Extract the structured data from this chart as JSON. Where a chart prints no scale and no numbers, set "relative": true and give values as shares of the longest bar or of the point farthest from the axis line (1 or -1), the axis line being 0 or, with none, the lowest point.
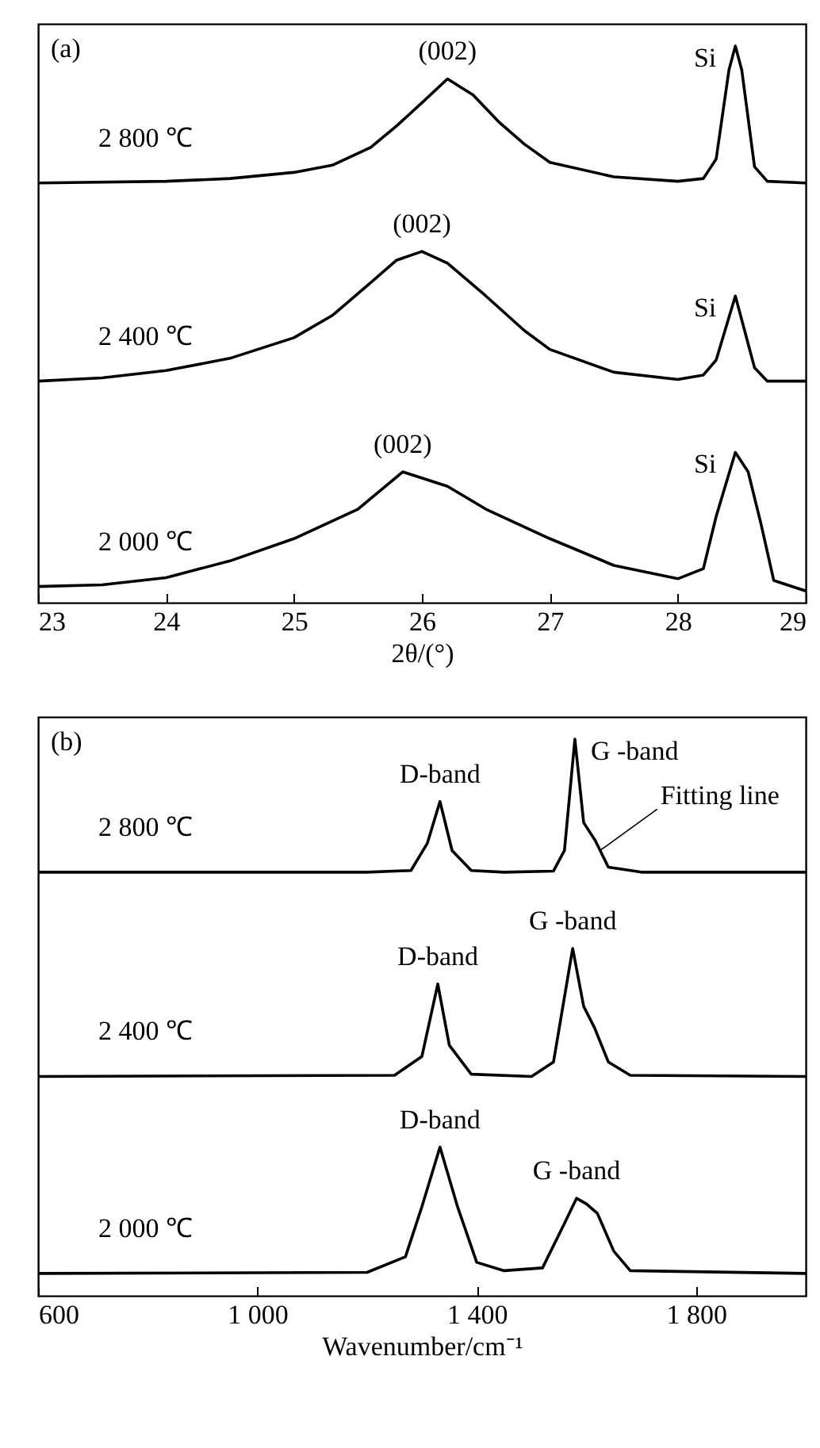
{
  "chart_data": [
    {
      "type": "line",
      "xlabel": "2θ/(°)",
      "xlim": [
        23,
        29
      ],
      "xticks": [
        23,
        24,
        25,
        26,
        27,
        28,
        29
      ],
      "relative": true,
      "series": [
        {
          "name": "2 800 ℃",
          "color": "#000000",
          "x": [
            23,
            24,
            24.5,
            25,
            25.3,
            25.6,
            25.8,
            26.0,
            26.2,
            26.4,
            26.6,
            26.8,
            27,
            27.5,
            28,
            28.2,
            28.3,
            28.4,
            28.45,
            28.5,
            28.6,
            28.7,
            29
          ],
          "values": [
            0.754,
            0.757,
            0.762,
            0.773,
            0.786,
            0.818,
            0.856,
            0.898,
            0.941,
            0.912,
            0.864,
            0.824,
            0.791,
            0.765,
            0.757,
            0.762,
            0.797,
            0.957,
            1,
            0.957,
            0.783,
            0.757,
            0.754
          ]
        },
        {
          "name": "2 400 ℃",
          "color": "#000000",
          "x": [
            23,
            23.5,
            24,
            24.5,
            25,
            25.3,
            25.6,
            25.8,
            26.0,
            26.2,
            26.5,
            26.8,
            27,
            27.5,
            28,
            28.2,
            28.3,
            28.45,
            28.6,
            28.7,
            29
          ],
          "values": [
            0.398,
            0.404,
            0.417,
            0.439,
            0.476,
            0.516,
            0.575,
            0.615,
            0.631,
            0.61,
            0.551,
            0.489,
            0.455,
            0.414,
            0.401,
            0.409,
            0.436,
            0.551,
            0.422,
            0.398,
            0.398
          ]
        },
        {
          "name": "2 000 ℃",
          "color": "#000000",
          "x": [
            23,
            23.5,
            24,
            24.5,
            25,
            25.5,
            25.85,
            26.2,
            26.5,
            27,
            27.5,
            28,
            28.2,
            28.3,
            28.45,
            28.55,
            28.65,
            28.75,
            29
          ],
          "values": [
            0.029,
            0.032,
            0.045,
            0.075,
            0.115,
            0.168,
            0.235,
            0.209,
            0.168,
            0.115,
            0.067,
            0.043,
            0.061,
            0.155,
            0.27,
            0.235,
            0.142,
            0.04,
            0.021
          ]
        }
      ],
      "annotations": [
        "(a)",
        {
          "text": "(002)",
          "x": 26.2,
          "y": 0.941
        },
        {
          "text": "(002)",
          "x": 26.0,
          "y": 0.631
        },
        {
          "text": "(002)",
          "x": 25.85,
          "y": 0.235
        },
        {
          "text": "Si",
          "x": 28.45,
          "y": 1
        },
        {
          "text": "Si",
          "x": 28.45,
          "y": 0.551
        },
        {
          "text": "Si",
          "x": 28.45,
          "y": 0.27
        }
      ]
    },
    {
      "type": "line",
      "xlabel": "Wavenumber/cm⁻¹",
      "xlim": [
        600,
        2000
      ],
      "xticks": [
        600,
        {
          "value": 1000,
          "label": "1 000"
        },
        {
          "value": 1400,
          "label": "1 400"
        },
        {
          "value": 1800,
          "label": "1 800"
        }
      ],
      "relative": true,
      "series": [
        {
          "name": "2 800 ℃",
          "color": "#000000",
          "x": [
            600,
            1200,
            1280,
            1310,
            1333,
            1355,
            1390,
            1450,
            1540,
            1560,
            1579,
            1595,
            1616,
            1640,
            1700,
            2000
          ],
          "values": [
            0.761,
            0.761,
            0.764,
            0.813,
            0.888,
            0.8,
            0.764,
            0.761,
            0.763,
            0.8,
            1,
            0.85,
            0.818,
            0.77,
            0.761,
            0.761
          ]
        },
        {
          "name": "2 400 ℃",
          "color": "#000000",
          "x": [
            600,
            1250,
            1300,
            1329,
            1350,
            1390,
            1500,
            1540,
            1575,
            1595,
            1615,
            1640,
            1680,
            2000
          ],
          "values": [
            0.394,
            0.396,
            0.43,
            0.56,
            0.45,
            0.398,
            0.394,
            0.42,
            0.624,
            0.52,
            0.481,
            0.42,
            0.396,
            0.394
          ]
        },
        {
          "name": "2 000 ℃",
          "color": "#000000",
          "x": [
            600,
            1200,
            1270,
            1300,
            1333,
            1365,
            1400,
            1450,
            1520,
            1560,
            1582,
            1600,
            1620,
            1650,
            1680,
            2000
          ],
          "values": [
            0.04,
            0.042,
            0.07,
            0.16,
            0.267,
            0.16,
            0.06,
            0.045,
            0.05,
            0.13,
            0.175,
            0.165,
            0.148,
            0.08,
            0.045,
            0.04
          ]
        }
      ],
      "annotations": [
        "(b)",
        {
          "text": "D-band",
          "x": 1333,
          "y": 0.888
        },
        {
          "text": "D-band",
          "x": 1329,
          "y": 0.56
        },
        {
          "text": "D-band",
          "x": 1333,
          "y": 0.267
        },
        {
          "text": "G -band",
          "x": 1579,
          "y": 1
        },
        {
          "text": "G -band",
          "x": 1575,
          "y": 0.624
        },
        {
          "text": "G -band",
          "x": 1582,
          "y": 0.175
        },
        {
          "text": "Fitting line",
          "x": 1625,
          "y": 0.8
        }
      ]
    }
  ]
}
